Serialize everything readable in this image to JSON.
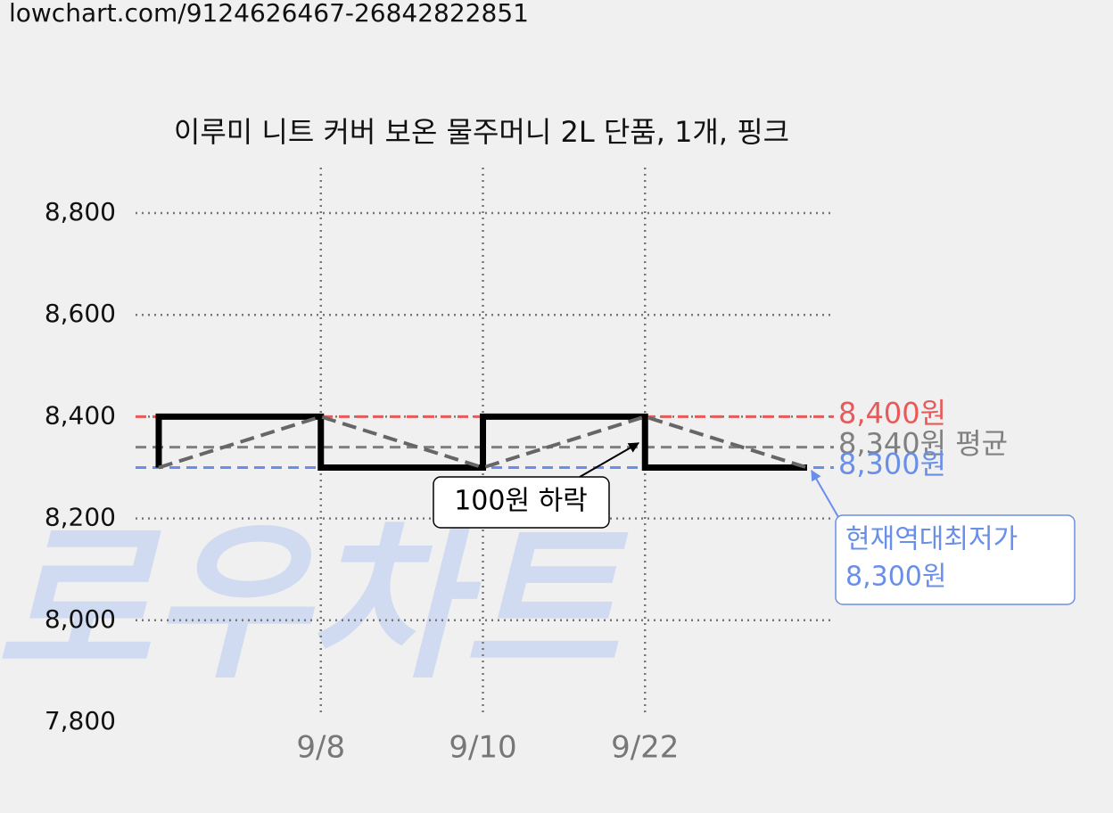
{
  "url": "lowchart.com/9124626467-26842822851",
  "watermark": "로우차트",
  "chart_data": {
    "type": "line",
    "title": "이루미 니트 커버 보온 물주머니 2L 단품, 1개, 핑크",
    "categories": [
      null,
      "9/8",
      "9/10",
      "9/22",
      null
    ],
    "series": [
      {
        "color": "#000000",
        "trend_color": "#666666",
        "values": [
          8300,
          8400,
          8300,
          8400,
          8300
        ]
      }
    ],
    "ylim": [
      7800,
      8800
    ],
    "yticks": [
      {
        "value": 7800,
        "label": "7,800"
      },
      {
        "value": 8000,
        "label": "8,000"
      },
      {
        "value": 8200,
        "label": "8,200"
      },
      {
        "value": 8400,
        "label": "8,400"
      },
      {
        "value": 8600,
        "label": "8,600"
      },
      {
        "value": 8800,
        "label": "8,800"
      }
    ],
    "grid": true,
    "reference_lines": [
      {
        "value": 8400,
        "label": "8,400원",
        "color": "#e85a5a"
      },
      {
        "value": 8340,
        "label": "8,340원 평균",
        "color": "#808080"
      },
      {
        "value": 8300,
        "label": "8,300원",
        "color": "#6a8fe8"
      }
    ],
    "annotations": [
      {
        "text": "100원 하락"
      },
      {
        "lines": [
          "현재역대최저가",
          "8,300원"
        ]
      }
    ]
  }
}
